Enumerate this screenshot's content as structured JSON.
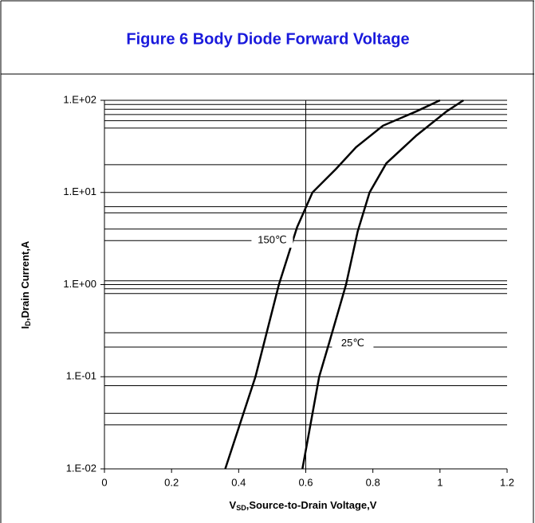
{
  "chart_data": {
    "type": "line",
    "title": "Figure 6 Body Diode Forward Voltage",
    "x_label": {
      "main": "V",
      "sub": "SD",
      "rest": ",Source-to-Drain Voltage,V"
    },
    "y_label": {
      "main": "I",
      "sub": "D",
      "rest": ",Drain Current,A"
    },
    "log_y": true,
    "xlim": [
      0,
      1.2
    ],
    "xticks": [
      0,
      0.2,
      0.4,
      0.6,
      0.8,
      1,
      1.2
    ],
    "ylim": [
      0.01,
      100
    ],
    "yticks": [
      {
        "value": 100,
        "label": "1.E+02"
      },
      {
        "value": 10,
        "label": "1.E+01"
      },
      {
        "value": 1,
        "label": "1.E+00"
      },
      {
        "value": 0.1,
        "label": "1.E-01"
      },
      {
        "value": 0.01,
        "label": "1.E-02"
      }
    ],
    "grid": true,
    "minor_grid": [
      90,
      80,
      70,
      60,
      50,
      20,
      7,
      6,
      4,
      3,
      1.1,
      0.9,
      0.8,
      0.3,
      0.21,
      0.08,
      0.04,
      0.03
    ],
    "xgrid": [
      0.6
    ],
    "color": "#000000",
    "series": [
      {
        "name": "150℃",
        "label_at": [
          0.5,
          3
        ],
        "x": [
          0.36,
          0.45,
          0.52,
          0.574,
          0.62,
          0.69,
          0.75,
          0.83,
          0.93,
          1.0
        ],
        "values": [
          0.01,
          0.1,
          1,
          4.2,
          10,
          18,
          31,
          53,
          76,
          100
        ]
      },
      {
        "name": "25℃",
        "label_at": [
          0.74,
          0.23
        ],
        "x": [
          0.59,
          0.64,
          0.67,
          0.72,
          0.755,
          0.79,
          0.84,
          0.93,
          1.02,
          1.07
        ],
        "values": [
          0.01,
          0.1,
          0.236,
          1,
          3.8,
          10,
          20.7,
          41.6,
          76,
          100
        ]
      }
    ]
  }
}
